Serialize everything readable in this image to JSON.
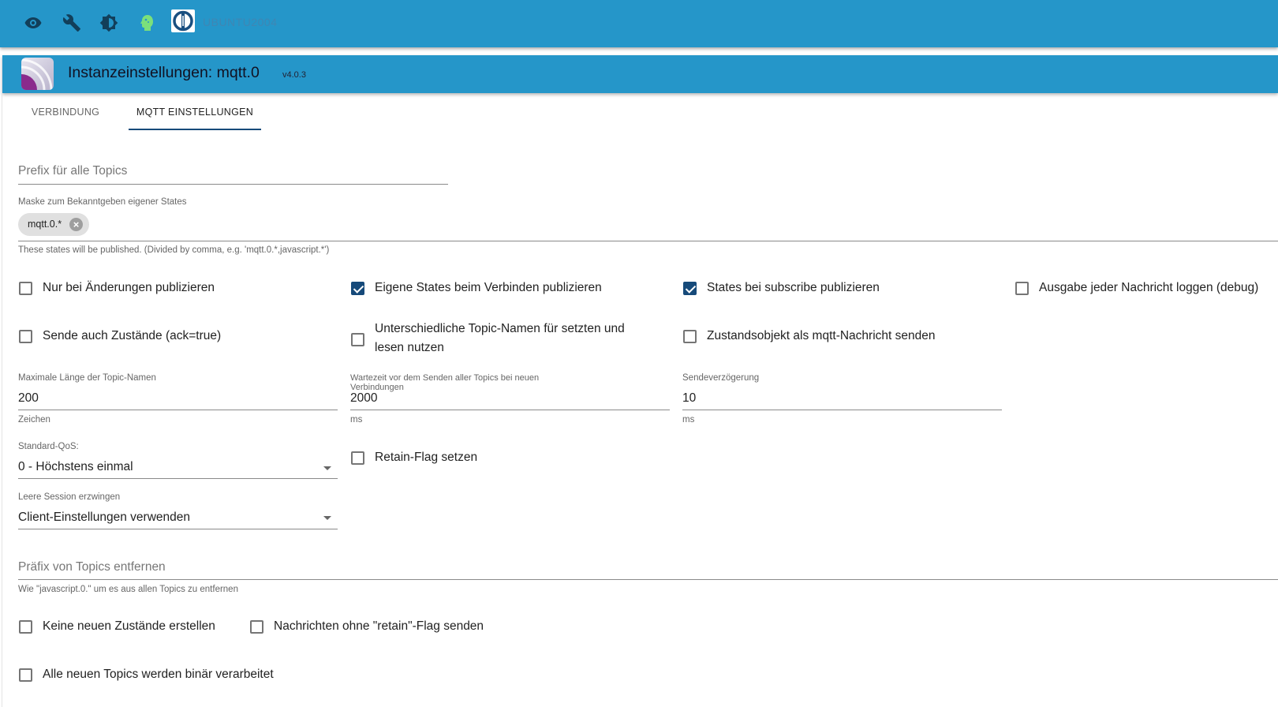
{
  "topbar": {
    "icons": [
      "eye-icon",
      "wrench-icon",
      "brightness-icon",
      "expert-mode-head-icon",
      "iobroker-logo"
    ],
    "hostname": "UBUNTU2004",
    "colors": {
      "bar": "#2596c9",
      "expert": "#7be07b"
    }
  },
  "header": {
    "title": "Instanzeinstellungen: mqtt.0",
    "version": "v4.0.3"
  },
  "tabs": [
    {
      "label": "VERBINDUNG",
      "active": false
    },
    {
      "label": "MQTT EINSTELLUNGEN",
      "active": true
    }
  ],
  "prefix": {
    "placeholder": "Prefix für alle Topics",
    "value": ""
  },
  "mask": {
    "label": "Maske zum Bekanntgeben eigener States",
    "chip": "mqtt.0.*",
    "help": "These states will be published. (Divided by comma, e.g. 'mqtt.0.*,javascript.*')"
  },
  "checks_row1": [
    {
      "label": "Nur bei Änderungen publizieren",
      "checked": false
    },
    {
      "label": "Eigene States beim Verbinden publizieren",
      "checked": true
    },
    {
      "label": "States bei subscribe publizieren",
      "checked": true
    },
    {
      "label": "Ausgabe jeder Nachricht loggen (debug)",
      "checked": false
    }
  ],
  "checks_row2": [
    {
      "label": "Sende auch Zustände (ack=true)",
      "checked": false
    },
    {
      "label": "Unterschiedliche Topic-Namen für setzten und",
      "label2": "lesen nutzen",
      "checked": false
    },
    {
      "label": "Zustandsobjekt als mqtt-Nachricht senden",
      "checked": false
    }
  ],
  "numbers": [
    {
      "label": "Maximale Länge der Topic-Namen",
      "value": "200",
      "unit": "Zeichen"
    },
    {
      "label": "Wartezeit vor dem Senden aller Topics bei neuen",
      "label2": "Verbindungen",
      "value": "2000",
      "unit": "ms"
    },
    {
      "label": "Sendeverzögerung",
      "value": "10",
      "unit": "ms"
    }
  ],
  "qos": {
    "label": "Standard-QoS:",
    "value": "0 - Höchstens einmal"
  },
  "retain": {
    "label": "Retain-Flag setzen",
    "checked": false
  },
  "session": {
    "label": "Leere Session erzwingen",
    "value": "Client-Einstellungen verwenden"
  },
  "remove_prefix": {
    "placeholder": "Präfix von Topics entfernen",
    "help": "Wie \"javascript.0.\" um es aus allen Topics zu entfernen"
  },
  "checks_bottom": [
    {
      "label": "Keine neuen Zustände erstellen",
      "checked": false
    },
    {
      "label": "Nachrichten ohne \"retain\"-Flag senden",
      "checked": false
    },
    {
      "label": "Alle neuen Topics werden binär verarbeitet",
      "checked": false
    }
  ]
}
